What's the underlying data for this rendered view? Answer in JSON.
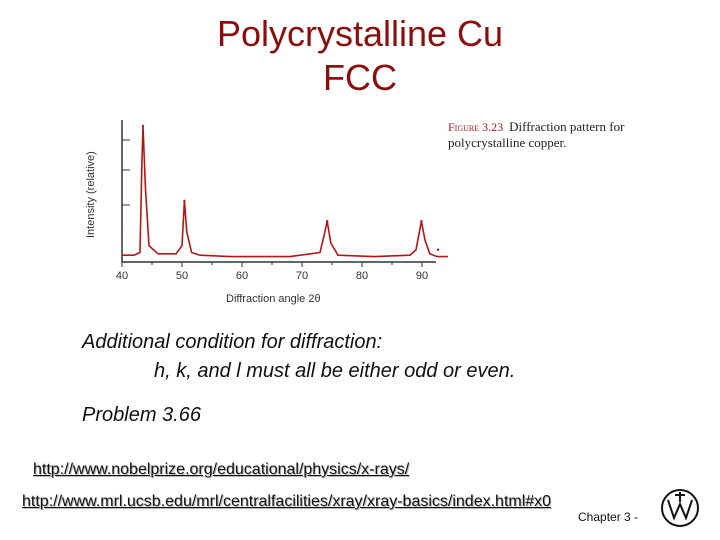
{
  "slide": {
    "title_lines": [
      "Polycrystalline Cu",
      "FCC"
    ],
    "figure_caption_label": "Figure 3.23",
    "figure_caption_text": "Diffraction pattern for polycrystalline copper.",
    "condition_line1": "Additional condition for diffraction:",
    "condition_line2": "h, k, and l must all be either odd or even.",
    "problem": "Problem 3.66",
    "link1": "http://www.nobelprize.org/educational/physics/x-rays/",
    "link2": "http://www.mrl.ucsb.edu/mrl/centralfacilities/xray/xray-basics/index.html#x0",
    "footer": "Chapter 3 -"
  },
  "colors": {
    "title": "#8b0d0d",
    "trace": "#b01818",
    "axis": "#333333"
  },
  "chart_data": {
    "type": "line",
    "xlabel": "Diffraction angle 2θ",
    "ylabel": "Intensity (relative)",
    "xlim": [
      40,
      95
    ],
    "ylim": [
      0,
      100
    ],
    "xticks": [
      "40",
      "50",
      "60",
      "70",
      "80",
      "90"
    ],
    "x": [
      40,
      42,
      43.0,
      43.3,
      43.5,
      43.9,
      44.5,
      46,
      49,
      50.0,
      50.4,
      50.8,
      51.6,
      53,
      58,
      68,
      73.0,
      73.7,
      74.2,
      74.8,
      76,
      82,
      88,
      89.0,
      89.9,
      90.5,
      91.3,
      92.5,
      95
    ],
    "y": [
      5,
      5,
      7,
      70,
      100,
      55,
      12,
      6,
      6,
      12,
      45,
      22,
      7,
      5,
      4,
      4,
      7,
      20,
      30,
      14,
      5,
      4,
      5,
      9,
      30,
      16,
      6,
      4,
      4
    ],
    "peaks": [
      {
        "x": 43.5,
        "y": 100
      },
      {
        "x": 50.4,
        "y": 45
      },
      {
        "x": 74.2,
        "y": 30
      },
      {
        "x": 89.9,
        "y": 30
      },
      {
        "x": 95.2,
        "y": 9
      }
    ]
  }
}
